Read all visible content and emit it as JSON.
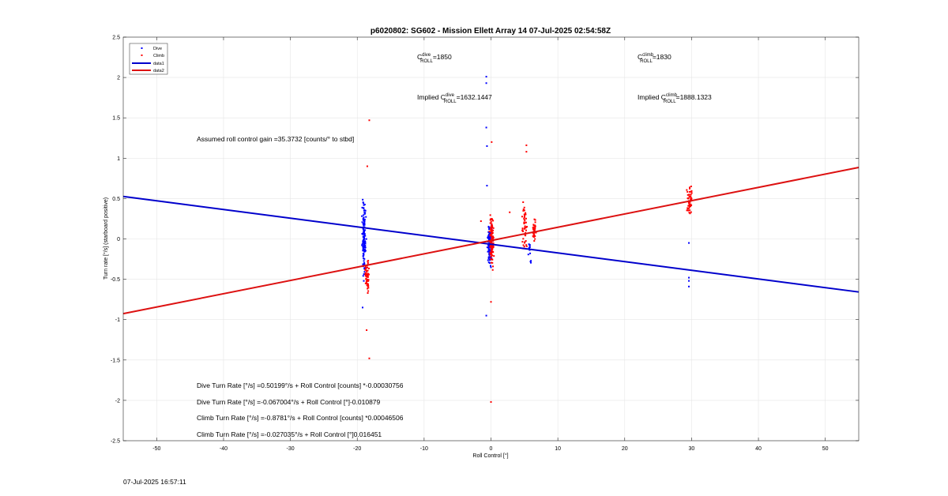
{
  "chart_data": {
    "type": "scatter",
    "title": "p6020802: SG602 - Mission Ellett Array 14 07-Jul-2025 02:54:58Z",
    "xlabel": "Roll Control [°]",
    "ylabel": "Turn rate [°/s] (starboard positive)",
    "xlim": [
      -55,
      55
    ],
    "ylim": [
      -2.5,
      2.5
    ],
    "x_ticks": [
      "-50",
      "-40",
      "-30",
      "-20",
      "-10",
      "0",
      "10",
      "20",
      "30",
      "40",
      "50"
    ],
    "y_ticks": [
      "2.5",
      "2",
      "1.5",
      "1",
      "0.5",
      "0",
      "-0.5",
      "-1",
      "-1.5",
      "-2",
      "-2.5"
    ],
    "grid": true,
    "legend": {
      "placement": "top-left",
      "entries": [
        "Dive",
        "Climb",
        "data1",
        "data2"
      ]
    },
    "series": [
      {
        "name": "Dive",
        "kind": "points",
        "color": "#0000ff",
        "clusters": [
          {
            "x_center": -19.0,
            "x_spread": 0.4,
            "y_min": -0.55,
            "y_max": 0.6,
            "count": 140
          },
          {
            "x_center": -0.2,
            "x_spread": 0.4,
            "y_min": -0.4,
            "y_max": 0.3,
            "count": 120
          },
          {
            "x_center": 5.8,
            "x_spread": 0.3,
            "y_min": -0.4,
            "y_max": 0.05,
            "count": 12
          }
        ],
        "points": [
          [
            -0.7,
            2.01
          ],
          [
            -0.7,
            1.93
          ],
          [
            -0.7,
            1.38
          ],
          [
            -0.6,
            1.15
          ],
          [
            -0.6,
            0.66
          ],
          [
            -0.7,
            -0.95
          ],
          [
            -19.2,
            -0.85
          ],
          [
            29.6,
            -0.48
          ],
          [
            29.6,
            -0.52
          ],
          [
            29.6,
            -0.59
          ],
          [
            29.6,
            -0.05
          ]
        ]
      },
      {
        "name": "Climb",
        "kind": "points",
        "color": "#ff0000",
        "clusters": [
          {
            "x_center": -18.5,
            "x_spread": 0.4,
            "y_min": -0.75,
            "y_max": -0.2,
            "count": 60
          },
          {
            "x_center": 0.1,
            "x_spread": 0.4,
            "y_min": -0.45,
            "y_max": 0.35,
            "count": 130
          },
          {
            "x_center": 5.0,
            "x_spread": 0.6,
            "y_min": -0.3,
            "y_max": 0.6,
            "count": 45
          },
          {
            "x_center": 6.5,
            "x_spread": 0.4,
            "y_min": -0.1,
            "y_max": 0.3,
            "count": 40
          },
          {
            "x_center": 29.7,
            "x_spread": 0.5,
            "y_min": 0.2,
            "y_max": 0.72,
            "count": 55
          }
        ],
        "points": [
          [
            -18.2,
            1.47
          ],
          [
            -18.5,
            0.9
          ],
          [
            -18.6,
            -1.13
          ],
          [
            -18.2,
            -1.48
          ],
          [
            0.1,
            1.2
          ],
          [
            0.0,
            -0.78
          ],
          [
            0.0,
            -2.02
          ],
          [
            5.3,
            1.16
          ],
          [
            5.3,
            1.08
          ],
          [
            2.8,
            0.33
          ],
          [
            -1.5,
            0.22
          ]
        ]
      },
      {
        "name": "data1",
        "kind": "line",
        "color": "#0000cc",
        "x": [
          -55,
          55
        ],
        "y": [
          0.5261,
          -0.6574
        ]
      },
      {
        "name": "data2",
        "kind": "line",
        "color": "#dd1111",
        "x": [
          -55,
          55
        ],
        "y": [
          -0.9262,
          0.8855
        ]
      }
    ],
    "annotations": {
      "c_dive": {
        "prefix": "C",
        "sup": "dive",
        "sub": "ROLL",
        "value": "=1850"
      },
      "c_climb": {
        "prefix": "C",
        "sup": "climb",
        "sub": "ROLL",
        "value": "=1830"
      },
      "implied_dive": {
        "prefix": "Implied C",
        "sup": "dive",
        "sub": "ROLL",
        "value": "=1632.1447"
      },
      "implied_climb": {
        "prefix": "Implied C",
        "sup": "climb",
        "sub": "ROLL",
        "value": "=1888.1323"
      },
      "gain": "Assumed roll control gain =35.3732 [counts/° to stbd]",
      "eq1": "Dive Turn Rate [°/s] =0.50199°/s + Roll Control [counts] *-0.00030756",
      "eq2": "Dive Turn Rate [°/s] =-0.067004°/s + Roll Control [°]-0.010879",
      "eq3": "Climb Turn Rate [°/s] =-0.8781°/s + Roll Control [counts] *0.00046506",
      "eq4": "Climb Turn Rate [°/s] =-0.027035°/s + Roll Control [°]0.016451"
    }
  },
  "footer": {
    "timestamp": "07-Jul-2025 16:57:11"
  }
}
